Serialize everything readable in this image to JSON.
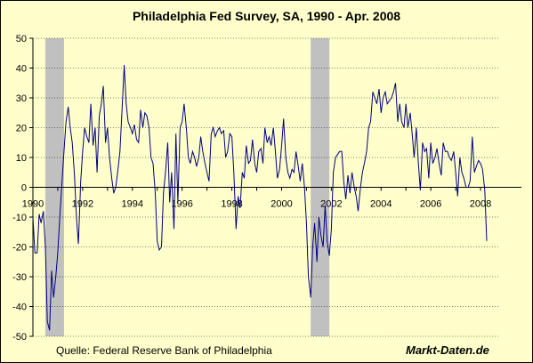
{
  "header": {
    "title": "Philadelphia Fed Survey, SA, 1990 - Apr. 2008"
  },
  "footer": {
    "source": "Quelle: Federal Reserve Bank of Philadelphia",
    "brand": "Markt-Daten.de"
  },
  "chart_data": {
    "type": "line",
    "title": "Philadelphia Fed Survey, SA, 1990 - Apr. 2008",
    "xlabel": "",
    "ylabel": "",
    "xlim": [
      1990,
      2008.75
    ],
    "ylim": [
      -50,
      50
    ],
    "y_ticks": [
      50,
      40,
      30,
      20,
      10,
      0,
      -10,
      -20,
      -30,
      -40,
      -50
    ],
    "x_ticks": [
      {
        "value": 1990,
        "label": "1990"
      },
      {
        "value": 1992,
        "label": "1992"
      },
      {
        "value": 1994,
        "label": "1994"
      },
      {
        "value": 1996,
        "label": "1996"
      },
      {
        "value": 1998,
        "label": "1998"
      },
      {
        "value": 2000,
        "label": "2000"
      },
      {
        "value": 2002,
        "label": "2002"
      },
      {
        "value": 2004,
        "label": "2004"
      },
      {
        "value": 2006,
        "label": "2006"
      },
      {
        "value": 2008,
        "label": "2008"
      }
    ],
    "grid": "horizontal-dashed",
    "line_color": "#000080",
    "recession_color": "#c0c0c0",
    "recessions": [
      [
        1990.5,
        1991.25
      ],
      [
        2001.17,
        2001.92
      ]
    ],
    "series": [
      {
        "x": [
          1990.0,
          1990.08,
          1990.17,
          1990.25,
          1990.33,
          1990.42,
          1990.5,
          1990.58,
          1990.67,
          1990.75,
          1990.83,
          1990.92,
          1991.0,
          1991.08,
          1991.17,
          1991.25,
          1991.33,
          1991.42,
          1991.5,
          1991.58,
          1991.67,
          1991.75,
          1991.83,
          1991.92,
          1992.0,
          1992.08,
          1992.17,
          1992.25,
          1992.33,
          1992.42,
          1992.5,
          1992.58,
          1992.67,
          1992.75,
          1992.83,
          1992.92,
          1993.0,
          1993.08,
          1993.17,
          1993.25,
          1993.33,
          1993.42,
          1993.5,
          1993.58,
          1993.67,
          1993.75,
          1993.83,
          1993.92,
          1994.0,
          1994.08,
          1994.17,
          1994.25,
          1994.33,
          1994.42,
          1994.5,
          1994.58,
          1994.67,
          1994.75,
          1994.83,
          1994.92,
          1995.0,
          1995.08,
          1995.17,
          1995.25,
          1995.33,
          1995.42,
          1995.5,
          1995.58,
          1995.67,
          1995.75,
          1995.83,
          1995.92,
          1996.0,
          1996.08,
          1996.17,
          1996.25,
          1996.33,
          1996.42,
          1996.5,
          1996.58,
          1996.67,
          1996.75,
          1996.83,
          1996.92,
          1997.0,
          1997.08,
          1997.17,
          1997.25,
          1997.33,
          1997.42,
          1997.5,
          1997.58,
          1997.67,
          1997.75,
          1997.83,
          1997.92,
          1998.0,
          1998.08,
          1998.17,
          1998.25,
          1998.33,
          1998.42,
          1998.5,
          1998.58,
          1998.67,
          1998.75,
          1998.83,
          1998.92,
          1999.0,
          1999.08,
          1999.17,
          1999.25,
          1999.33,
          1999.42,
          1999.5,
          1999.58,
          1999.67,
          1999.75,
          1999.83,
          1999.92,
          2000.0,
          2000.08,
          2000.17,
          2000.25,
          2000.33,
          2000.42,
          2000.5,
          2000.58,
          2000.67,
          2000.75,
          2000.83,
          2000.92,
          2001.0,
          2001.08,
          2001.17,
          2001.25,
          2001.33,
          2001.42,
          2001.5,
          2001.58,
          2001.67,
          2001.75,
          2001.83,
          2001.92,
          2002.0,
          2002.08,
          2002.17,
          2002.25,
          2002.33,
          2002.42,
          2002.5,
          2002.58,
          2002.67,
          2002.75,
          2002.83,
          2002.92,
          2003.0,
          2003.08,
          2003.17,
          2003.25,
          2003.33,
          2003.42,
          2003.5,
          2003.58,
          2003.67,
          2003.75,
          2003.83,
          2003.92,
          2004.0,
          2004.08,
          2004.17,
          2004.25,
          2004.33,
          2004.42,
          2004.5,
          2004.58,
          2004.67,
          2004.75,
          2004.83,
          2004.92,
          2005.0,
          2005.08,
          2005.17,
          2005.25,
          2005.33,
          2005.42,
          2005.5,
          2005.58,
          2005.67,
          2005.75,
          2005.83,
          2005.92,
          2006.0,
          2006.08,
          2006.17,
          2006.25,
          2006.33,
          2006.42,
          2006.5,
          2006.58,
          2006.67,
          2006.75,
          2006.83,
          2006.92,
          2007.0,
          2007.08,
          2007.17,
          2007.25,
          2007.33,
          2007.42,
          2007.5,
          2007.58,
          2007.67,
          2007.75,
          2007.83,
          2007.92,
          2008.0,
          2008.08,
          2008.17,
          2008.25
        ],
        "y": [
          -10,
          -22,
          -22,
          -9,
          -12,
          -8,
          -20,
          -45,
          -48,
          -28,
          -37,
          -30,
          -22,
          -10,
          2,
          12,
          22,
          27,
          20,
          15,
          4,
          -10,
          -19,
          2,
          12,
          20,
          17,
          15,
          28,
          14,
          20,
          5,
          24,
          28,
          34,
          15,
          20,
          10,
          3,
          -2,
          0,
          6,
          12,
          25,
          41,
          28,
          22,
          20,
          18,
          21,
          16,
          15,
          26,
          20,
          25,
          24,
          20,
          10,
          8,
          -2,
          -18,
          -21,
          -20,
          -2,
          5,
          15,
          -5,
          5,
          -14,
          18,
          -5,
          20,
          22,
          28,
          20,
          10,
          8,
          12,
          10,
          7,
          10,
          17,
          12,
          8,
          5,
          2,
          18,
          20,
          17,
          19,
          20,
          18,
          19,
          10,
          12,
          18,
          17,
          5,
          -14,
          -3,
          -7,
          5,
          3,
          14,
          8,
          9,
          16,
          8,
          5,
          12,
          13,
          8,
          20,
          15,
          17,
          14,
          20,
          12,
          3,
          6,
          14,
          23,
          10,
          5,
          3,
          6,
          5,
          12,
          7,
          2,
          8,
          0,
          -12,
          -30,
          -37,
          -20,
          -12,
          -25,
          -10,
          -16,
          -20,
          -6,
          -18,
          -23,
          -14,
          5,
          10,
          11,
          12,
          12,
          2,
          -4,
          4,
          -2,
          5,
          0,
          -3,
          -8,
          0,
          5,
          8,
          12,
          20,
          22,
          32,
          30,
          28,
          33,
          25,
          30,
          32,
          28,
          29,
          30,
          32,
          35,
          22,
          28,
          22,
          20,
          28,
          20,
          25,
          18,
          10,
          20,
          8,
          -1,
          15,
          12,
          13,
          3,
          15,
          8,
          10,
          13,
          8,
          4,
          15,
          12,
          12,
          10,
          9,
          12,
          5,
          -3,
          10,
          5,
          3,
          0,
          0,
          2,
          17,
          5,
          7,
          9,
          8,
          6,
          -1,
          -18
        ]
      }
    ]
  }
}
